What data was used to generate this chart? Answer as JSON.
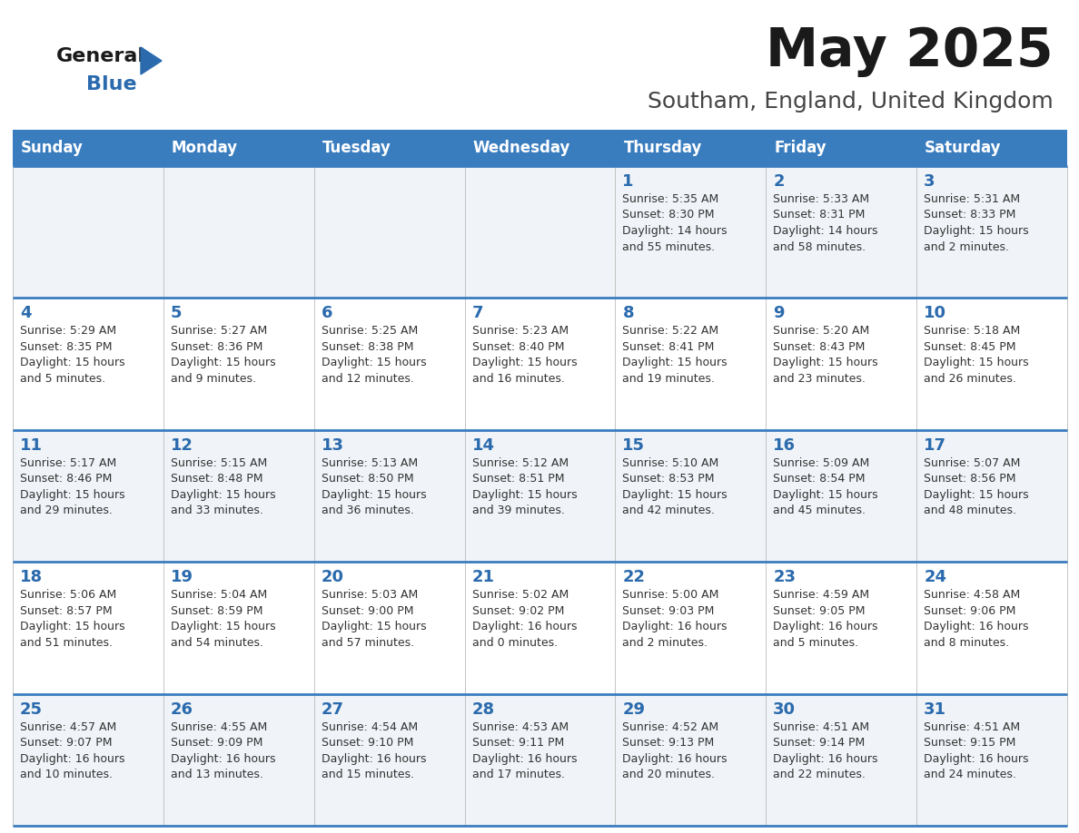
{
  "title": "May 2025",
  "subtitle": "Southam, England, United Kingdom",
  "days_of_week": [
    "Sunday",
    "Monday",
    "Tuesday",
    "Wednesday",
    "Thursday",
    "Friday",
    "Saturday"
  ],
  "header_bg": "#3a7dbf",
  "header_text": "#ffffff",
  "day_num_color": "#2a6aad",
  "cell_text_color": "#333333",
  "cell_bg_even": "#f0f4f8",
  "cell_bg_odd": "#ffffff",
  "divider_color": "#3a7dbf",
  "title_color": "#1a1a1a",
  "subtitle_color": "#444444",
  "logo_general_color": "#1a1a1a",
  "logo_blue_color": "#2a6aad",
  "weeks": [
    [
      {
        "day": null,
        "info": null
      },
      {
        "day": null,
        "info": null
      },
      {
        "day": null,
        "info": null
      },
      {
        "day": null,
        "info": null
      },
      {
        "day": 1,
        "info": "Sunrise: 5:35 AM\nSunset: 8:30 PM\nDaylight: 14 hours\nand 55 minutes."
      },
      {
        "day": 2,
        "info": "Sunrise: 5:33 AM\nSunset: 8:31 PM\nDaylight: 14 hours\nand 58 minutes."
      },
      {
        "day": 3,
        "info": "Sunrise: 5:31 AM\nSunset: 8:33 PM\nDaylight: 15 hours\nand 2 minutes."
      }
    ],
    [
      {
        "day": 4,
        "info": "Sunrise: 5:29 AM\nSunset: 8:35 PM\nDaylight: 15 hours\nand 5 minutes."
      },
      {
        "day": 5,
        "info": "Sunrise: 5:27 AM\nSunset: 8:36 PM\nDaylight: 15 hours\nand 9 minutes."
      },
      {
        "day": 6,
        "info": "Sunrise: 5:25 AM\nSunset: 8:38 PM\nDaylight: 15 hours\nand 12 minutes."
      },
      {
        "day": 7,
        "info": "Sunrise: 5:23 AM\nSunset: 8:40 PM\nDaylight: 15 hours\nand 16 minutes."
      },
      {
        "day": 8,
        "info": "Sunrise: 5:22 AM\nSunset: 8:41 PM\nDaylight: 15 hours\nand 19 minutes."
      },
      {
        "day": 9,
        "info": "Sunrise: 5:20 AM\nSunset: 8:43 PM\nDaylight: 15 hours\nand 23 minutes."
      },
      {
        "day": 10,
        "info": "Sunrise: 5:18 AM\nSunset: 8:45 PM\nDaylight: 15 hours\nand 26 minutes."
      }
    ],
    [
      {
        "day": 11,
        "info": "Sunrise: 5:17 AM\nSunset: 8:46 PM\nDaylight: 15 hours\nand 29 minutes."
      },
      {
        "day": 12,
        "info": "Sunrise: 5:15 AM\nSunset: 8:48 PM\nDaylight: 15 hours\nand 33 minutes."
      },
      {
        "day": 13,
        "info": "Sunrise: 5:13 AM\nSunset: 8:50 PM\nDaylight: 15 hours\nand 36 minutes."
      },
      {
        "day": 14,
        "info": "Sunrise: 5:12 AM\nSunset: 8:51 PM\nDaylight: 15 hours\nand 39 minutes."
      },
      {
        "day": 15,
        "info": "Sunrise: 5:10 AM\nSunset: 8:53 PM\nDaylight: 15 hours\nand 42 minutes."
      },
      {
        "day": 16,
        "info": "Sunrise: 5:09 AM\nSunset: 8:54 PM\nDaylight: 15 hours\nand 45 minutes."
      },
      {
        "day": 17,
        "info": "Sunrise: 5:07 AM\nSunset: 8:56 PM\nDaylight: 15 hours\nand 48 minutes."
      }
    ],
    [
      {
        "day": 18,
        "info": "Sunrise: 5:06 AM\nSunset: 8:57 PM\nDaylight: 15 hours\nand 51 minutes."
      },
      {
        "day": 19,
        "info": "Sunrise: 5:04 AM\nSunset: 8:59 PM\nDaylight: 15 hours\nand 54 minutes."
      },
      {
        "day": 20,
        "info": "Sunrise: 5:03 AM\nSunset: 9:00 PM\nDaylight: 15 hours\nand 57 minutes."
      },
      {
        "day": 21,
        "info": "Sunrise: 5:02 AM\nSunset: 9:02 PM\nDaylight: 16 hours\nand 0 minutes."
      },
      {
        "day": 22,
        "info": "Sunrise: 5:00 AM\nSunset: 9:03 PM\nDaylight: 16 hours\nand 2 minutes."
      },
      {
        "day": 23,
        "info": "Sunrise: 4:59 AM\nSunset: 9:05 PM\nDaylight: 16 hours\nand 5 minutes."
      },
      {
        "day": 24,
        "info": "Sunrise: 4:58 AM\nSunset: 9:06 PM\nDaylight: 16 hours\nand 8 minutes."
      }
    ],
    [
      {
        "day": 25,
        "info": "Sunrise: 4:57 AM\nSunset: 9:07 PM\nDaylight: 16 hours\nand 10 minutes."
      },
      {
        "day": 26,
        "info": "Sunrise: 4:55 AM\nSunset: 9:09 PM\nDaylight: 16 hours\nand 13 minutes."
      },
      {
        "day": 27,
        "info": "Sunrise: 4:54 AM\nSunset: 9:10 PM\nDaylight: 16 hours\nand 15 minutes."
      },
      {
        "day": 28,
        "info": "Sunrise: 4:53 AM\nSunset: 9:11 PM\nDaylight: 16 hours\nand 17 minutes."
      },
      {
        "day": 29,
        "info": "Sunrise: 4:52 AM\nSunset: 9:13 PM\nDaylight: 16 hours\nand 20 minutes."
      },
      {
        "day": 30,
        "info": "Sunrise: 4:51 AM\nSunset: 9:14 PM\nDaylight: 16 hours\nand 22 minutes."
      },
      {
        "day": 31,
        "info": "Sunrise: 4:51 AM\nSunset: 9:15 PM\nDaylight: 16 hours\nand 24 minutes."
      }
    ]
  ]
}
